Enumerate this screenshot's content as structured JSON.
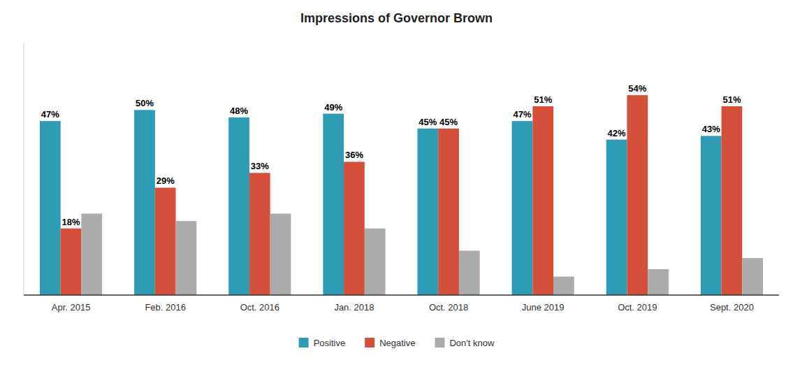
{
  "chart_data": {
    "type": "bar",
    "title": "Impressions of Governor Brown",
    "categories": [
      "Apr. 2015",
      "Feb. 2016",
      "Oct. 2016",
      "Jan. 2018",
      "Oct. 2018",
      "June 2019",
      "Oct. 2019",
      "Sept. 2020"
    ],
    "series": [
      {
        "name": "Positive",
        "color": "#2E9BB5",
        "values": [
          47,
          50,
          48,
          49,
          45,
          47,
          42,
          43
        ],
        "value_labels": [
          "47%",
          "50%",
          "48%",
          "49%",
          "45%",
          "47%",
          "42%",
          "43%"
        ],
        "data_labels": true
      },
      {
        "name": "Negative",
        "color": "#D44F3A",
        "values": [
          18,
          29,
          33,
          36,
          45,
          51,
          54,
          51
        ],
        "value_labels": [
          "18%",
          "29%",
          "33%",
          "36%",
          "45%",
          "51%",
          "54%",
          "51%"
        ],
        "data_labels": true
      },
      {
        "name": "Don't know",
        "color": "#ABABAB",
        "values": [
          22,
          20,
          22,
          18,
          12,
          5,
          7,
          10
        ],
        "data_labels": false
      }
    ],
    "ylim": [
      0,
      68
    ],
    "yticks": [],
    "grid": false,
    "legend": "bottom",
    "tick_labels": "x"
  }
}
